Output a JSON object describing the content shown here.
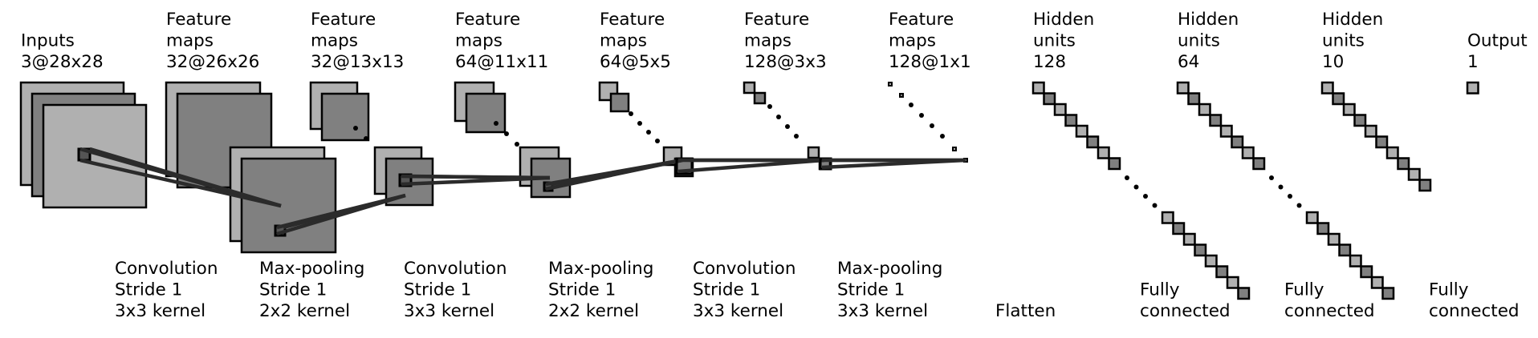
{
  "layers": [
    {
      "title": [
        "Inputs",
        "3@28x28"
      ]
    },
    {
      "title": [
        "Feature",
        "maps",
        "32@26x26"
      ]
    },
    {
      "title": [
        "Feature",
        "maps",
        "32@13x13"
      ]
    },
    {
      "title": [
        "Feature",
        "maps",
        "64@11x11"
      ]
    },
    {
      "title": [
        "Feature",
        "maps",
        "64@5x5"
      ]
    },
    {
      "title": [
        "Feature",
        "maps",
        "128@3x3"
      ]
    },
    {
      "title": [
        "Feature",
        "maps",
        "128@1x1"
      ]
    },
    {
      "title": [
        "Hidden",
        "units",
        "128"
      ]
    },
    {
      "title": [
        "Hidden",
        "units",
        "64"
      ]
    },
    {
      "title": [
        "Hidden",
        "units",
        "10"
      ]
    },
    {
      "title": [
        "Output",
        "1"
      ]
    }
  ],
  "operations": [
    {
      "label": [
        "Convolution",
        "Stride 1",
        "3x3 kernel"
      ]
    },
    {
      "label": [
        "Max-pooling",
        "Stride 1",
        "2x2 kernel"
      ]
    },
    {
      "label": [
        "Convolution",
        "Stride 1",
        "3x3 kernel"
      ]
    },
    {
      "label": [
        "Max-pooling",
        "Stride 1",
        "2x2 kernel"
      ]
    },
    {
      "label": [
        "Convolution",
        "Stride 1",
        "3x3 kernel"
      ]
    },
    {
      "label": [
        "Max-pooling",
        "Stride 1",
        "3x3 kernel"
      ]
    },
    {
      "label": [
        "Flatten"
      ]
    },
    {
      "label": [
        "Fully",
        "connected"
      ]
    },
    {
      "label": [
        "Fully",
        "connected"
      ]
    },
    {
      "label": [
        "Fully",
        "connected"
      ]
    }
  ],
  "colors": {
    "light": "#b0b0b0",
    "dark": "#808080",
    "edge": "#000000",
    "connector": "#2b2b2b",
    "text": "#000000"
  }
}
